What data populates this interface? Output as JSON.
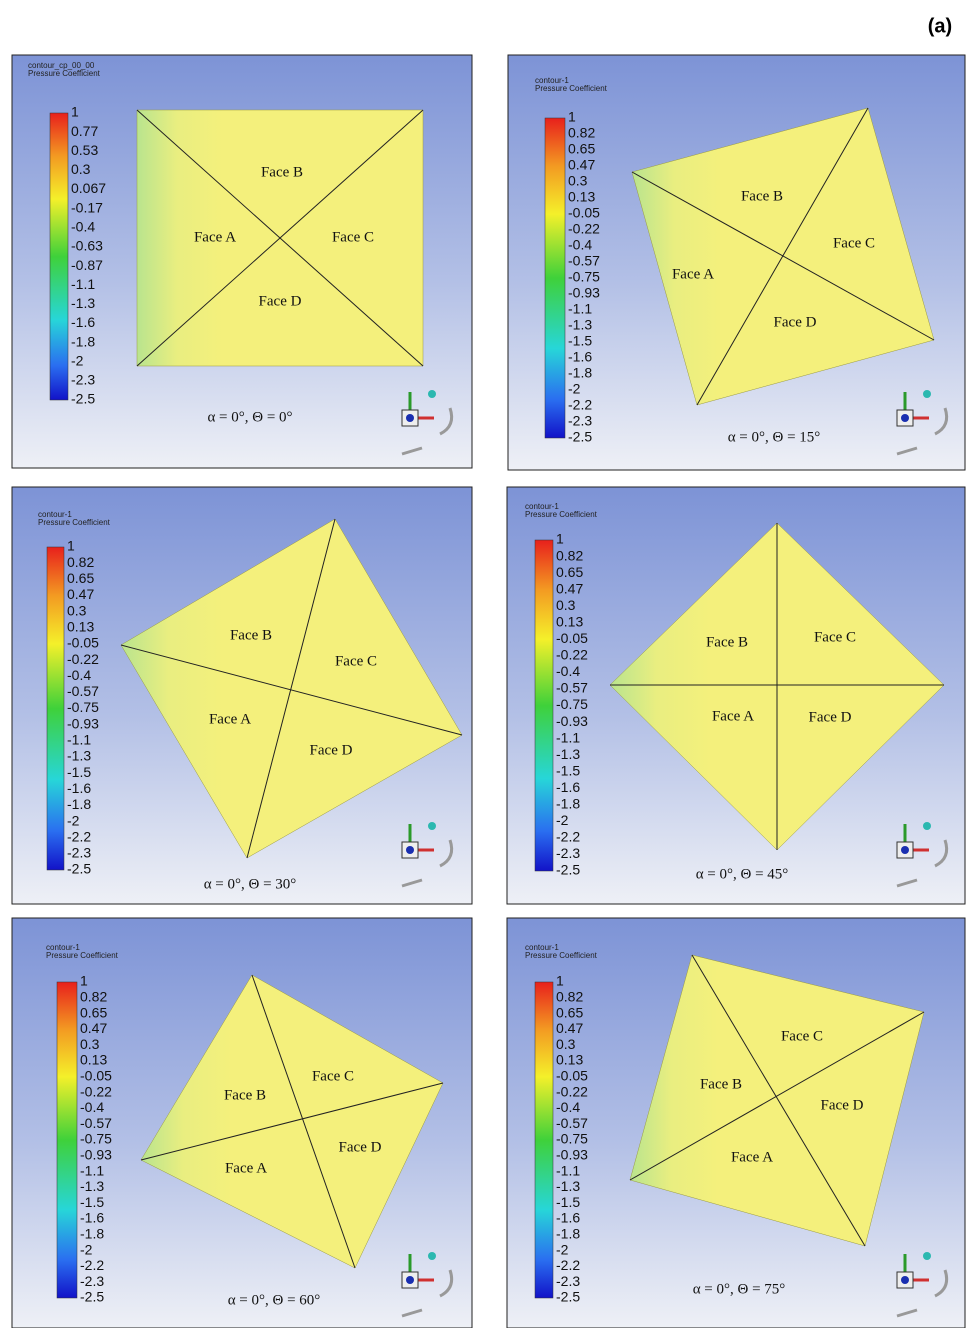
{
  "label": "(a)",
  "panels": [
    {
      "contour": "contour_cp_00_00",
      "variable": "Pressure Coefficient",
      "colorbar": [
        "1",
        "0.77",
        "0.53",
        "0.3",
        "0.067",
        "-0.17",
        "-0.4",
        "-0.63",
        "-0.87",
        "-1.1",
        "-1.3",
        "-1.6",
        "-1.8",
        "-2",
        "-2.3",
        "-2.5"
      ],
      "faces": [
        "Face A",
        "Face B",
        "Face C",
        "Face D"
      ],
      "caption": "α = 0°, Θ = 0°"
    },
    {
      "contour": "contour-1",
      "variable": "Pressure Coefficient",
      "colorbar": [
        "1",
        "0.82",
        "0.65",
        "0.47",
        "0.3",
        "0.13",
        "-0.05",
        "-0.22",
        "-0.4",
        "-0.57",
        "-0.75",
        "-0.93",
        "-1.1",
        "-1.3",
        "-1.5",
        "-1.6",
        "-1.8",
        "-2",
        "-2.2",
        "-2.3",
        "-2.5"
      ],
      "faces": [
        "Face A",
        "Face B",
        "Face C",
        "Face D"
      ],
      "caption": "α = 0°, Θ = 15°"
    },
    {
      "contour": "contour-1",
      "variable": "Pressure Coefficient",
      "colorbar": [
        "1",
        "0.82",
        "0.65",
        "0.47",
        "0.3",
        "0.13",
        "-0.05",
        "-0.22",
        "-0.4",
        "-0.57",
        "-0.75",
        "-0.93",
        "-1.1",
        "-1.3",
        "-1.5",
        "-1.6",
        "-1.8",
        "-2",
        "-2.2",
        "-2.3",
        "-2.5"
      ],
      "faces": [
        "Face A",
        "Face B",
        "Face C",
        "Face D"
      ],
      "caption": "α = 0°, Θ = 30°"
    },
    {
      "contour": "contour-1",
      "variable": "Pressure Coefficient",
      "colorbar": [
        "1",
        "0.82",
        "0.65",
        "0.47",
        "0.3",
        "0.13",
        "-0.05",
        "-0.22",
        "-0.4",
        "-0.57",
        "-0.75",
        "-0.93",
        "-1.1",
        "-1.3",
        "-1.5",
        "-1.6",
        "-1.8",
        "-2",
        "-2.2",
        "-2.3",
        "-2.5"
      ],
      "faces": [
        "Face A",
        "Face B",
        "Face C",
        "Face D"
      ],
      "caption": "α = 0°, Θ = 45°"
    },
    {
      "contour": "contour-1",
      "variable": "Pressure Coefficient",
      "colorbar": [
        "1",
        "0.82",
        "0.65",
        "0.47",
        "0.3",
        "0.13",
        "-0.05",
        "-0.22",
        "-0.4",
        "-0.57",
        "-0.75",
        "-0.93",
        "-1.1",
        "-1.3",
        "-1.5",
        "-1.6",
        "-1.8",
        "-2",
        "-2.2",
        "-2.3",
        "-2.5"
      ],
      "faces": [
        "Face A",
        "Face B",
        "Face C",
        "Face D"
      ],
      "caption": "α = 0°, Θ = 60°"
    },
    {
      "contour": "contour-1",
      "variable": "Pressure Coefficient",
      "colorbar": [
        "1",
        "0.82",
        "0.65",
        "0.47",
        "0.3",
        "0.13",
        "-0.05",
        "-0.22",
        "-0.4",
        "-0.57",
        "-0.75",
        "-0.93",
        "-1.1",
        "-1.3",
        "-1.5",
        "-1.6",
        "-1.8",
        "-2",
        "-2.2",
        "-2.3",
        "-2.5"
      ],
      "faces": [
        "Face A",
        "Face B",
        "Face C",
        "Face D"
      ],
      "caption": "α = 0°, Θ = 75°"
    }
  ]
}
